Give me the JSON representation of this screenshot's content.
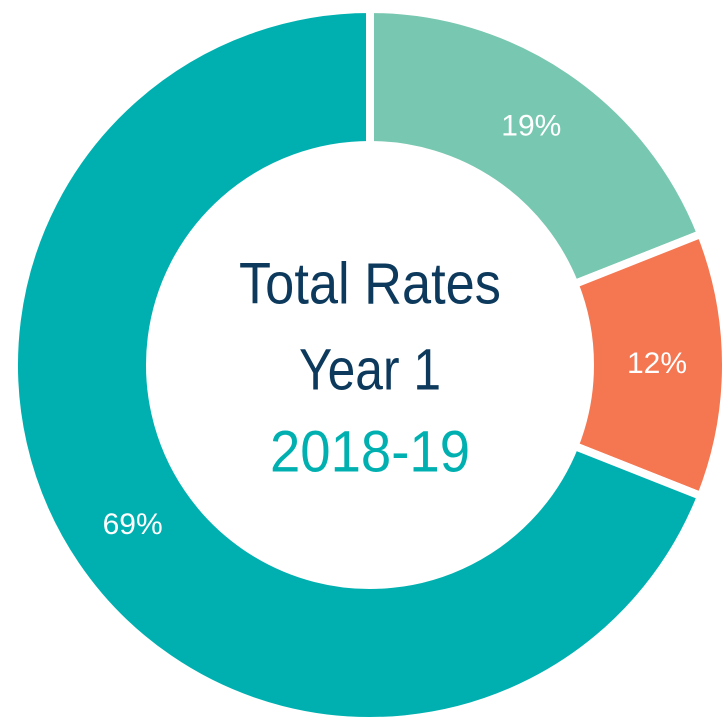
{
  "chart_data": {
    "type": "pie",
    "title": [
      "Total Rates",
      "Year 1"
    ],
    "subtitle": "2018-19",
    "categories": [
      null,
      null,
      null
    ],
    "values": [
      19,
      12,
      69
    ],
    "value_labels": [
      "19%",
      "12%",
      "69%"
    ],
    "colors": [
      "#78c7b0",
      "#f47752",
      "#00b0b0"
    ]
  }
}
